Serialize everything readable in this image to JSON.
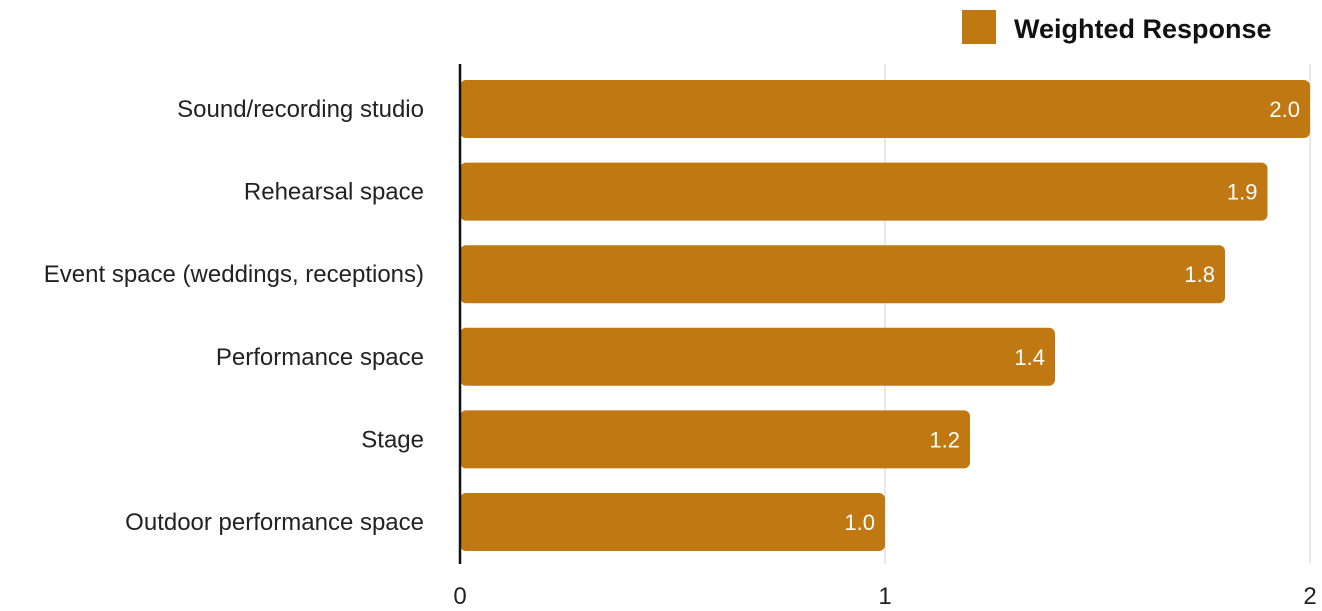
{
  "chart_data": {
    "type": "bar",
    "orientation": "horizontal",
    "categories": [
      "Sound/recording studio",
      "Rehearsal space",
      "Event space (weddings, receptions)",
      "Performance space",
      "Stage",
      "Outdoor performance space"
    ],
    "series": [
      {
        "name": "Weighted Response",
        "values": [
          2.0,
          1.9,
          1.8,
          1.4,
          1.2,
          1.0
        ],
        "data_labels": [
          "2.0",
          "1.9",
          "1.8",
          "1.4",
          "1.2",
          "1.0"
        ]
      }
    ],
    "xlim": [
      0,
      2
    ],
    "x_ticks": [
      0,
      1,
      2
    ],
    "x_tick_labels": [
      "0",
      "1",
      "2"
    ],
    "grid": "vertical",
    "legend_position": "top-right",
    "colors": {
      "bar": "#c07812",
      "axis": "#111111",
      "grid": "#d3d3d3"
    }
  }
}
